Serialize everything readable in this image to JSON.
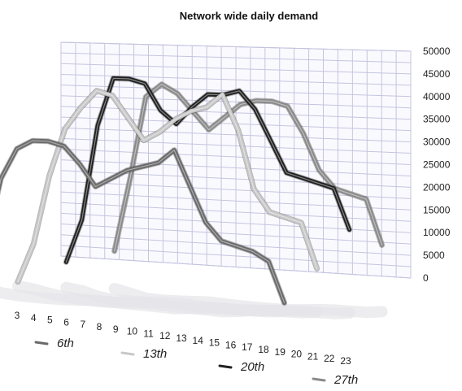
{
  "chart_data": {
    "type": "line",
    "title": "Network wide daily demand",
    "xlabel": "",
    "ylabel": "",
    "x": [
      "3",
      "4",
      "5",
      "6",
      "7",
      "8",
      "9",
      "10",
      "11",
      "12",
      "13",
      "14",
      "15",
      "16",
      "17",
      "18",
      "19",
      "20",
      "21",
      "22",
      "23"
    ],
    "ylim": [
      0,
      50000
    ],
    "yticks": [
      "0",
      "5000",
      "10000",
      "15000",
      "20000",
      "25000",
      "30000",
      "35000",
      "40000",
      "45000",
      "50000"
    ],
    "grid": true,
    "legend": "bottom",
    "style": "3d-perspective",
    "series": [
      {
        "name": "6th",
        "color": "#6a6a6a",
        "values": [
          1000,
          13000,
          29000,
          36000,
          38000,
          38000,
          37000,
          33000,
          28000,
          30000,
          32000,
          33000,
          34000,
          37000,
          29000,
          21000,
          17000,
          16000,
          15000,
          13000,
          4000
        ]
      },
      {
        "name": "13th",
        "color": "#c8c8c8",
        "values": [
          null,
          1000,
          10000,
          26000,
          37000,
          42000,
          46000,
          45000,
          40000,
          35000,
          37000,
          40000,
          42000,
          43000,
          46000,
          38000,
          25000,
          20000,
          19000,
          18000,
          8000
        ]
      },
      {
        "name": "20th",
        "color": "#222222",
        "values": [
          null,
          null,
          2000,
          12000,
          34000,
          45000,
          45000,
          44000,
          38000,
          35000,
          39000,
          42000,
          42000,
          43000,
          39000,
          32000,
          25000,
          24000,
          23000,
          22000,
          13000
        ]
      },
      {
        "name": "27th",
        "color": "#8a8a8a",
        "values": [
          null,
          null,
          null,
          1000,
          18000,
          37000,
          40000,
          38000,
          34000,
          30000,
          33000,
          36000,
          37000,
          37000,
          36000,
          30000,
          22000,
          18000,
          17000,
          16000,
          6000
        ]
      }
    ]
  }
}
